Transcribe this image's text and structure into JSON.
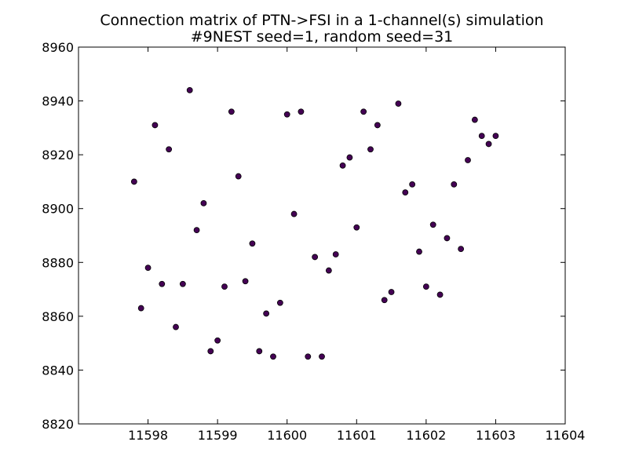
{
  "chart_data": {
    "type": "scatter",
    "title": "Connection matrix of PTN->FSI in a 1-channel(s) simulation",
    "subtitle": "#9NEST seed=1, random seed=31",
    "xlabel": "",
    "ylabel": "",
    "xlim": [
      11597,
      11604
    ],
    "ylim": [
      8820,
      8960
    ],
    "xticks": [
      11598,
      11599,
      11600,
      11601,
      11602,
      11603,
      11604
    ],
    "yticks": [
      8820,
      8840,
      8860,
      8880,
      8900,
      8920,
      8940,
      8960
    ],
    "grid": false,
    "legend": "none",
    "marker_color": "#440154",
    "points": [
      [
        11597.8,
        8910
      ],
      [
        11597.9,
        8863
      ],
      [
        11598.0,
        8878
      ],
      [
        11598.1,
        8931
      ],
      [
        11598.2,
        8872
      ],
      [
        11598.3,
        8922
      ],
      [
        11598.4,
        8856
      ],
      [
        11598.5,
        8872
      ],
      [
        11598.6,
        8944
      ],
      [
        11598.7,
        8892
      ],
      [
        11598.8,
        8902
      ],
      [
        11598.9,
        8847
      ],
      [
        11599.0,
        8851
      ],
      [
        11599.1,
        8871
      ],
      [
        11599.2,
        8936
      ],
      [
        11599.3,
        8912
      ],
      [
        11599.4,
        8873
      ],
      [
        11599.5,
        8887
      ],
      [
        11599.6,
        8847
      ],
      [
        11599.7,
        8861
      ],
      [
        11599.8,
        8845
      ],
      [
        11599.9,
        8865
      ],
      [
        11600.0,
        8935
      ],
      [
        11600.1,
        8898
      ],
      [
        11600.2,
        8936
      ],
      [
        11600.3,
        8845
      ],
      [
        11600.4,
        8882
      ],
      [
        11600.5,
        8845
      ],
      [
        11600.6,
        8877
      ],
      [
        11600.7,
        8883
      ],
      [
        11600.8,
        8916
      ],
      [
        11600.9,
        8919
      ],
      [
        11601.0,
        8893
      ],
      [
        11601.1,
        8936
      ],
      [
        11601.2,
        8922
      ],
      [
        11601.3,
        8931
      ],
      [
        11601.4,
        8866
      ],
      [
        11601.5,
        8869
      ],
      [
        11601.6,
        8939
      ],
      [
        11601.7,
        8906
      ],
      [
        11601.8,
        8909
      ],
      [
        11601.9,
        8884
      ],
      [
        11602.0,
        8871
      ],
      [
        11602.1,
        8894
      ],
      [
        11602.2,
        8868
      ],
      [
        11602.3,
        8889
      ],
      [
        11602.4,
        8909
      ],
      [
        11602.5,
        8885
      ],
      [
        11602.6,
        8918
      ],
      [
        11602.7,
        8933
      ],
      [
        11602.8,
        8927
      ],
      [
        11602.9,
        8924
      ],
      [
        11603.0,
        8927
      ]
    ]
  }
}
